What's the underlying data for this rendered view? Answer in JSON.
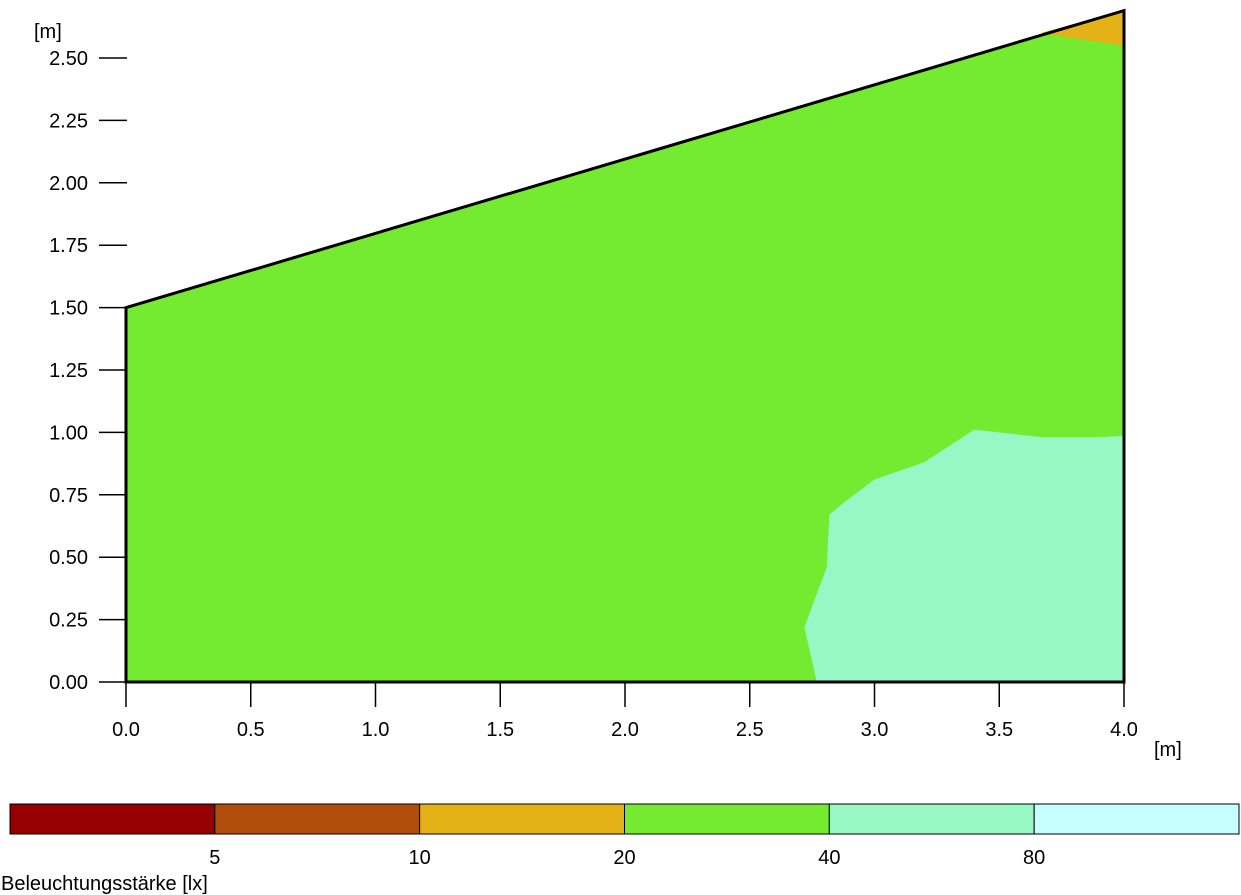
{
  "chart_data": {
    "type": "heatmap",
    "x_unit": "[m]",
    "y_unit": "[m]",
    "xlim": [
      0,
      4
    ],
    "ylim": [
      0,
      2.7
    ],
    "x_ticks": [
      "0.0",
      "0.5",
      "1.0",
      "1.5",
      "2.0",
      "2.5",
      "3.0",
      "3.5",
      "4.0"
    ],
    "y_ticks": [
      "0.00",
      "0.25",
      "0.50",
      "0.75",
      "1.00",
      "1.25",
      "1.50",
      "1.75",
      "2.00",
      "2.25",
      "2.50"
    ],
    "outline": [
      [
        0,
        0
      ],
      [
        0,
        1.5
      ],
      [
        4.0,
        2.69
      ],
      [
        4.0,
        0
      ]
    ],
    "regions": [
      {
        "level": "20–40",
        "color": "#74eb30",
        "polygon": [
          [
            0,
            0
          ],
          [
            0,
            1.5
          ],
          [
            4.0,
            2.69
          ],
          [
            4.0,
            0
          ]
        ]
      },
      {
        "level": "10–20",
        "color": "#e4b117",
        "polygon": [
          [
            3.67,
            2.6
          ],
          [
            4.0,
            2.69
          ],
          [
            4.0,
            2.55
          ]
        ]
      },
      {
        "level": "40–80",
        "color": "#98f8c5",
        "polygon": [
          [
            2.77,
            0
          ],
          [
            2.72,
            0.22
          ],
          [
            2.81,
            0.46
          ],
          [
            2.82,
            0.67
          ],
          [
            2.88,
            0.72
          ],
          [
            3.0,
            0.81
          ],
          [
            3.2,
            0.88
          ],
          [
            3.4,
            1.01
          ],
          [
            3.67,
            0.98
          ],
          [
            3.9,
            0.98
          ],
          [
            4.0,
            0.985
          ],
          [
            4.0,
            0
          ]
        ]
      }
    ],
    "legend": {
      "title": "Beleuchtungsstärke [lx]",
      "labels": [
        "5",
        "10",
        "20",
        "40",
        "80"
      ],
      "colors": [
        "#960000",
        "#b04d0a",
        "#e4b117",
        "#74eb30",
        "#98f8c5",
        "#c6fdfe"
      ]
    }
  }
}
